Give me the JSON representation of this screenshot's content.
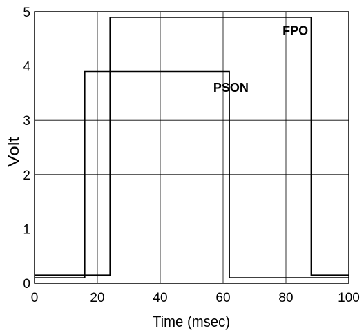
{
  "chart_data": {
    "type": "line",
    "title": "",
    "xlabel": "Time (msec)",
    "ylabel": "Volt",
    "xlim": [
      0,
      100
    ],
    "ylim": [
      0,
      5
    ],
    "x_ticks": [
      0,
      20,
      40,
      60,
      80,
      100
    ],
    "y_ticks": [
      0,
      1,
      2,
      3,
      4,
      5
    ],
    "x_tick_labels": [
      "0",
      "20",
      "40",
      "60",
      "80",
      "100"
    ],
    "y_tick_labels": [
      "0",
      "1",
      "2",
      "3",
      "4",
      "5"
    ],
    "grid": true,
    "line_color": "#000000",
    "grid_color": "#000000",
    "annotations": [
      {
        "text": "FPO",
        "x": 83,
        "y": 4.65
      },
      {
        "text": "PSON",
        "x": 62.5,
        "y": 3.6
      }
    ],
    "series": [
      {
        "name": "PSON",
        "x": [
          0,
          16,
          16,
          62,
          62,
          100
        ],
        "y": [
          0.1,
          0.1,
          3.9,
          3.9,
          0.1,
          0.1
        ]
      },
      {
        "name": "FPO",
        "x": [
          0,
          24,
          24,
          88,
          88,
          100
        ],
        "y": [
          0.15,
          0.15,
          4.9,
          4.9,
          0.15,
          0.15
        ]
      }
    ]
  }
}
